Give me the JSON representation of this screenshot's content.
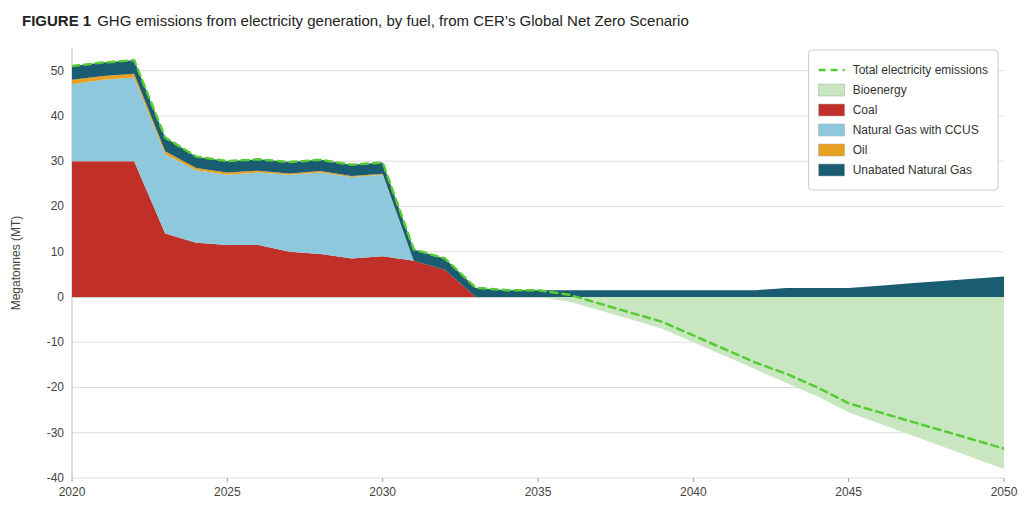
{
  "chart_data": {
    "type": "area",
    "stacked": true,
    "title": "FIGURE 1",
    "subtitle": "GHG emissions from electricity generation, by fuel, from CER’s Global Net Zero Scenario",
    "ylabel": "Megatonnes (MT)",
    "x": [
      2020,
      2021,
      2022,
      2023,
      2024,
      2025,
      2026,
      2027,
      2028,
      2029,
      2030,
      2031,
      2032,
      2033,
      2034,
      2035,
      2036,
      2037,
      2038,
      2039,
      2040,
      2041,
      2042,
      2043,
      2044,
      2045,
      2046,
      2047,
      2048,
      2049,
      2050
    ],
    "series": [
      {
        "name": "Total electricity emissions",
        "type": "line",
        "line_style": "dashed",
        "color": "#55CC33",
        "values": [
          51.0,
          51.8,
          52.3,
          35.2,
          31.0,
          30.0,
          30.4,
          29.8,
          30.3,
          29.2,
          29.7,
          10.5,
          8.5,
          2.0,
          1.5,
          1.5,
          0.5,
          -1.5,
          -3.5,
          -5.5,
          -8.5,
          -11.5,
          -14.5,
          -17.0,
          -20.0,
          -23.5,
          -25.5,
          -27.5,
          -29.5,
          -31.5,
          -33.5
        ]
      },
      {
        "name": "Bioenergy",
        "color": "#C8E6C0",
        "values": [
          0.0,
          0.0,
          0.0,
          0.0,
          0.0,
          0.0,
          0.0,
          0.0,
          0.0,
          0.0,
          0.0,
          0.0,
          0.0,
          0.0,
          0.0,
          0.0,
          -1.0,
          -3.0,
          -5.0,
          -7.0,
          -10.0,
          -13.0,
          -16.0,
          -19.0,
          -22.0,
          -25.5,
          -28.0,
          -30.5,
          -33.0,
          -35.5,
          -38.0
        ]
      },
      {
        "name": "Coal",
        "color": "#C03028",
        "values": [
          30.0,
          30.0,
          30.0,
          14.0,
          12.0,
          11.5,
          11.5,
          10.0,
          9.5,
          8.5,
          9.0,
          8.0,
          6.0,
          0.0,
          0.0,
          0.0,
          0.0,
          0.0,
          0.0,
          0.0,
          0.0,
          0.0,
          0.0,
          0.0,
          0.0,
          0.0,
          0.0,
          0.0,
          0.0,
          0.0,
          0.0
        ]
      },
      {
        "name": "Natural Gas with CCUS",
        "color": "#8DC8DC",
        "values": [
          17.0,
          18.0,
          18.5,
          17.5,
          16.0,
          15.5,
          16.0,
          17.0,
          18.0,
          18.0,
          18.0,
          0.0,
          0.0,
          0.0,
          0.0,
          0.0,
          0.0,
          0.0,
          0.0,
          0.0,
          0.0,
          0.0,
          0.0,
          0.0,
          0.0,
          0.0,
          0.0,
          0.0,
          0.0,
          0.0,
          0.0
        ]
      },
      {
        "name": "Oil",
        "color": "#E8A020",
        "values": [
          1.0,
          0.8,
          0.8,
          0.7,
          0.5,
          0.5,
          0.4,
          0.3,
          0.3,
          0.2,
          0.2,
          0.0,
          0.0,
          0.0,
          0.0,
          0.0,
          0.0,
          0.0,
          0.0,
          0.0,
          0.0,
          0.0,
          0.0,
          0.0,
          0.0,
          0.0,
          0.0,
          0.0,
          0.0,
          0.0,
          0.0
        ]
      },
      {
        "name": "Unabated Natural Gas",
        "color": "#1A5C72",
        "values": [
          3.0,
          3.0,
          3.0,
          3.0,
          2.5,
          2.5,
          2.5,
          2.5,
          2.5,
          2.5,
          2.5,
          2.5,
          2.5,
          2.0,
          1.5,
          1.5,
          1.5,
          1.5,
          1.5,
          1.5,
          1.5,
          1.5,
          1.5,
          2.0,
          2.0,
          2.0,
          2.5,
          3.0,
          3.5,
          4.0,
          4.5
        ]
      }
    ],
    "xlim": [
      2020,
      2050
    ],
    "xticks": [
      2020,
      2025,
      2030,
      2035,
      2040,
      2045,
      2050
    ],
    "ylim": [
      -40,
      55
    ],
    "yticks": [
      -40,
      -30,
      -20,
      -10,
      0,
      10,
      20,
      30,
      40,
      50
    ],
    "grid": true,
    "legend": "upper right"
  }
}
